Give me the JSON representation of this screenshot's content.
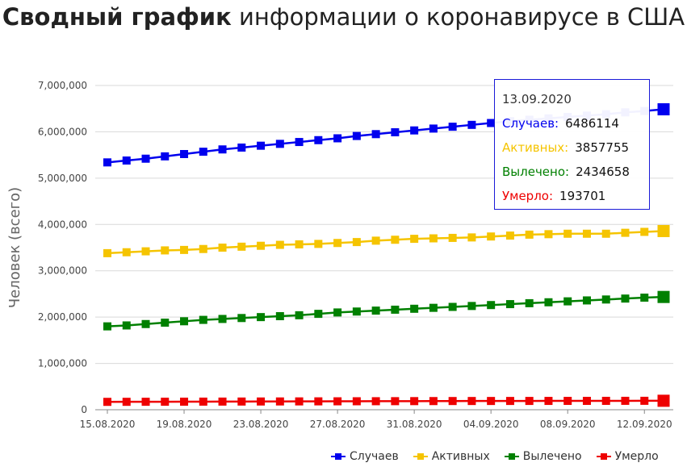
{
  "title": {
    "bold": "Сводный график",
    "rest": " информации о коронавирусе в США"
  },
  "chart_data": {
    "type": "line",
    "title": "Сводный график информации о коронавирусе в США",
    "ylabel": "Человек (всего)",
    "xlabel": "",
    "ylim": [
      0,
      7000000
    ],
    "yticks": [
      "0",
      "1,000,000",
      "2,000,000",
      "3,000,000",
      "4,000,000",
      "5,000,000",
      "6,000,000",
      "7,000,000"
    ],
    "xticks": [
      "15.08.2020",
      "19.08.2020",
      "23.08.2020",
      "27.08.2020",
      "31.08.2020",
      "04.09.2020",
      "08.09.2020",
      "12.09.2020"
    ],
    "x": [
      "15.08.2020",
      "16.08.2020",
      "17.08.2020",
      "18.08.2020",
      "19.08.2020",
      "20.08.2020",
      "21.08.2020",
      "22.08.2020",
      "23.08.2020",
      "24.08.2020",
      "25.08.2020",
      "26.08.2020",
      "27.08.2020",
      "28.08.2020",
      "29.08.2020",
      "30.08.2020",
      "31.08.2020",
      "01.09.2020",
      "02.09.2020",
      "03.09.2020",
      "04.09.2020",
      "05.09.2020",
      "06.09.2020",
      "07.09.2020",
      "08.09.2020",
      "09.09.2020",
      "10.09.2020",
      "11.09.2020",
      "12.09.2020",
      "13.09.2020"
    ],
    "series": [
      {
        "name": "Случаев",
        "color": "#0000ee",
        "values": [
          5340000,
          5380000,
          5420000,
          5470000,
          5520000,
          5570000,
          5620000,
          5660000,
          5700000,
          5740000,
          5780000,
          5820000,
          5860000,
          5910000,
          5950000,
          5990000,
          6030000,
          6070000,
          6110000,
          6150000,
          6190000,
          6230000,
          6260000,
          6290000,
          6320000,
          6350000,
          6380000,
          6420000,
          6450000,
          6486114
        ]
      },
      {
        "name": "Активных",
        "color": "#f5c400",
        "values": [
          3380000,
          3400000,
          3420000,
          3440000,
          3450000,
          3470000,
          3500000,
          3520000,
          3540000,
          3560000,
          3570000,
          3580000,
          3600000,
          3620000,
          3650000,
          3670000,
          3690000,
          3700000,
          3710000,
          3720000,
          3740000,
          3760000,
          3780000,
          3790000,
          3800000,
          3800000,
          3800000,
          3820000,
          3840000,
          3857755
        ]
      },
      {
        "name": "Вылечено",
        "color": "#008000",
        "values": [
          1800000,
          1820000,
          1850000,
          1880000,
          1910000,
          1940000,
          1960000,
          1980000,
          2000000,
          2020000,
          2040000,
          2070000,
          2100000,
          2120000,
          2140000,
          2160000,
          2180000,
          2200000,
          2220000,
          2240000,
          2260000,
          2280000,
          2300000,
          2320000,
          2340000,
          2360000,
          2380000,
          2400000,
          2420000,
          2434658
        ]
      },
      {
        "name": "Умерло",
        "color": "#ee0000",
        "values": [
          170000,
          171000,
          172000,
          173000,
          174000,
          175000,
          176000,
          177000,
          178000,
          179000,
          180000,
          181000,
          182000,
          183000,
          184000,
          185000,
          186000,
          187000,
          188000,
          188500,
          189000,
          189500,
          190000,
          190500,
          191000,
          191500,
          192000,
          192500,
          193000,
          193701
        ]
      }
    ],
    "legend_position": "bottom-right",
    "grid": true
  },
  "tooltip": {
    "date": "13.09.2020",
    "rows": [
      {
        "label": "Случаев:",
        "value": "6486114",
        "color": "#0000ee"
      },
      {
        "label": "Активных:",
        "value": "3857755",
        "color": "#f5c400"
      },
      {
        "label": "Вылечено:",
        "value": "2434658",
        "color": "#008000"
      },
      {
        "label": "Умерло:",
        "value": "193701",
        "color": "#ee0000"
      }
    ]
  }
}
